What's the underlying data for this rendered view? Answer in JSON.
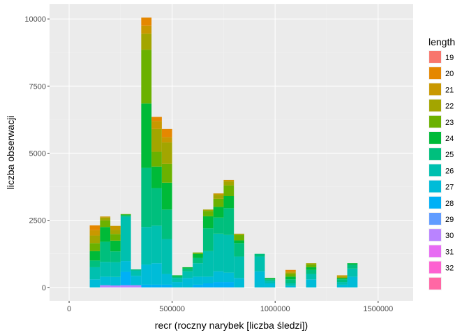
{
  "chart_data": {
    "type": "bar",
    "stacked": true,
    "xlabel": "recr (roczny narybek [liczba śledzi])",
    "ylabel": "liczba obserwacji",
    "xlim": [
      -95000,
      1670000
    ],
    "ylim": [
      -500,
      10550
    ],
    "x_ticks": [
      0,
      500000,
      1000000,
      1500000
    ],
    "x_tick_labels": [
      "0",
      "500000",
      "1000000",
      "1500000"
    ],
    "y_ticks": [
      0,
      2500,
      5000,
      7500,
      10000
    ],
    "y_tick_labels": [
      "0",
      "2500",
      "5000",
      "7500",
      "10000"
    ],
    "grid": true,
    "legend": {
      "title": "length",
      "placement": "right",
      "items": [
        {
          "label": "19",
          "color": "#F8766D"
        },
        {
          "label": "20",
          "color": "#E58700"
        },
        {
          "label": "21",
          "color": "#C99800"
        },
        {
          "label": "22",
          "color": "#A3A500"
        },
        {
          "label": "23",
          "color": "#6BB100"
        },
        {
          "label": "24",
          "color": "#00BA38"
        },
        {
          "label": "25",
          "color": "#00BF7D"
        },
        {
          "label": "26",
          "color": "#00C0AF"
        },
        {
          "label": "27",
          "color": "#00BCD8"
        },
        {
          "label": "28",
          "color": "#00B0F6"
        },
        {
          "label": "29",
          "color": "#619CFF"
        },
        {
          "label": "30",
          "color": "#B983FF"
        },
        {
          "label": "31",
          "color": "#E76BF3"
        },
        {
          "label": "32",
          "color": "#FD61D1"
        },
        {
          "label": "",
          "color": "#FF67A4"
        }
      ]
    },
    "bin_width": 50000,
    "bins": [
      {
        "x_start": 100000,
        "x_end": 150000,
        "stack": [
          [
            27,
            300
          ],
          [
            26,
            450
          ],
          [
            25,
            250
          ],
          [
            24,
            350
          ],
          [
            23,
            300
          ],
          [
            22,
            280
          ],
          [
            21,
            200
          ],
          [
            20,
            180
          ]
        ]
      },
      {
        "x_start": 150000,
        "x_end": 200000,
        "stack": [
          [
            30,
            80
          ],
          [
            27,
            320
          ],
          [
            26,
            550
          ],
          [
            25,
            750
          ],
          [
            24,
            550
          ],
          [
            23,
            250
          ],
          [
            22,
            100
          ],
          [
            21,
            40
          ]
        ]
      },
      {
        "x_start": 200000,
        "x_end": 250000,
        "stack": [
          [
            30,
            70
          ],
          [
            27,
            320
          ],
          [
            26,
            550
          ],
          [
            25,
            400
          ],
          [
            24,
            400
          ],
          [
            23,
            250
          ],
          [
            22,
            150
          ],
          [
            21,
            150
          ]
        ]
      },
      {
        "x_start": 250000,
        "x_end": 300000,
        "stack": [
          [
            30,
            80
          ],
          [
            28,
            500
          ],
          [
            27,
            400
          ],
          [
            26,
            1650
          ],
          [
            25,
            50
          ],
          [
            24,
            30
          ],
          [
            23,
            20
          ]
        ]
      },
      {
        "x_start": 300000,
        "x_end": 350000,
        "stack": [
          [
            30,
            80
          ],
          [
            27,
            350
          ],
          [
            26,
            200
          ],
          [
            25,
            40
          ]
        ]
      },
      {
        "x_start": 350000,
        "x_end": 400000,
        "stack": [
          [
            28,
            100
          ],
          [
            27,
            750
          ],
          [
            26,
            1400
          ],
          [
            25,
            2200
          ],
          [
            24,
            2400
          ],
          [
            23,
            2000
          ],
          [
            22,
            600
          ],
          [
            21,
            300
          ],
          [
            20,
            300
          ]
        ]
      },
      {
        "x_start": 400000,
        "x_end": 450000,
        "stack": [
          [
            28,
            100
          ],
          [
            27,
            800
          ],
          [
            26,
            1400
          ],
          [
            25,
            1400
          ],
          [
            24,
            800
          ],
          [
            23,
            550
          ],
          [
            22,
            850
          ],
          [
            21,
            300
          ],
          [
            20,
            150
          ]
        ]
      },
      {
        "x_start": 450000,
        "x_end": 500000,
        "stack": [
          [
            28,
            100
          ],
          [
            27,
            400
          ],
          [
            26,
            1300
          ],
          [
            25,
            1100
          ],
          [
            24,
            1000
          ],
          [
            23,
            700
          ],
          [
            22,
            800
          ],
          [
            21,
            200
          ],
          [
            20,
            300
          ]
        ]
      },
      {
        "x_start": 500000,
        "x_end": 550000,
        "stack": [
          [
            27,
            200
          ],
          [
            26,
            150
          ],
          [
            25,
            50
          ],
          [
            24,
            50
          ]
        ]
      },
      {
        "x_start": 550000,
        "x_end": 600000,
        "stack": [
          [
            27,
            350
          ],
          [
            26,
            250
          ],
          [
            25,
            100
          ],
          [
            24,
            50
          ]
        ]
      },
      {
        "x_start": 600000,
        "x_end": 650000,
        "stack": [
          [
            28,
            100
          ],
          [
            27,
            300
          ],
          [
            26,
            500
          ],
          [
            25,
            200
          ],
          [
            24,
            150
          ],
          [
            23,
            50
          ]
        ]
      },
      {
        "x_start": 650000,
        "x_end": 700000,
        "stack": [
          [
            28,
            150
          ],
          [
            27,
            250
          ],
          [
            26,
            950
          ],
          [
            25,
            850
          ],
          [
            24,
            450
          ],
          [
            23,
            200
          ],
          [
            22,
            50
          ]
        ]
      },
      {
        "x_start": 700000,
        "x_end": 750000,
        "stack": [
          [
            28,
            200
          ],
          [
            27,
            400
          ],
          [
            26,
            1400
          ],
          [
            25,
            600
          ],
          [
            24,
            400
          ],
          [
            23,
            300
          ],
          [
            22,
            150
          ],
          [
            21,
            50
          ]
        ]
      },
      {
        "x_start": 750000,
        "x_end": 800000,
        "stack": [
          [
            28,
            200
          ],
          [
            27,
            350
          ],
          [
            26,
            1400
          ],
          [
            25,
            1000
          ],
          [
            24,
            450
          ],
          [
            23,
            400
          ],
          [
            22,
            150
          ],
          [
            21,
            50
          ]
        ]
      },
      {
        "x_start": 800000,
        "x_end": 850000,
        "stack": [
          [
            27,
            350
          ],
          [
            26,
            800
          ],
          [
            25,
            500
          ],
          [
            24,
            100
          ],
          [
            23,
            200
          ],
          [
            22,
            50
          ]
        ]
      },
      {
        "x_start": 900000,
        "x_end": 950000,
        "stack": [
          [
            27,
            600
          ],
          [
            26,
            550
          ],
          [
            25,
            100
          ]
        ]
      },
      {
        "x_start": 950000,
        "x_end": 1000000,
        "stack": [
          [
            27,
            150
          ],
          [
            26,
            100
          ],
          [
            25,
            50
          ],
          [
            24,
            50
          ]
        ]
      },
      {
        "x_start": 1050000,
        "x_end": 1100000,
        "stack": [
          [
            27,
            50
          ],
          [
            26,
            100
          ],
          [
            25,
            150
          ],
          [
            24,
            100
          ],
          [
            23,
            100
          ],
          [
            22,
            50
          ],
          [
            21,
            50
          ],
          [
            20,
            50
          ]
        ]
      },
      {
        "x_start": 1150000,
        "x_end": 1200000,
        "stack": [
          [
            27,
            300
          ],
          [
            26,
            200
          ],
          [
            25,
            150
          ],
          [
            24,
            100
          ],
          [
            23,
            100
          ],
          [
            22,
            50
          ]
        ]
      },
      {
        "x_start": 1300000,
        "x_end": 1350000,
        "stack": [
          [
            27,
            100
          ],
          [
            26,
            100
          ],
          [
            25,
            100
          ],
          [
            24,
            50
          ],
          [
            22,
            50
          ],
          [
            21,
            50
          ]
        ]
      },
      {
        "x_start": 1350000,
        "x_end": 1400000,
        "stack": [
          [
            27,
            400
          ],
          [
            26,
            300
          ],
          [
            25,
            150
          ],
          [
            24,
            50
          ]
        ]
      }
    ]
  }
}
